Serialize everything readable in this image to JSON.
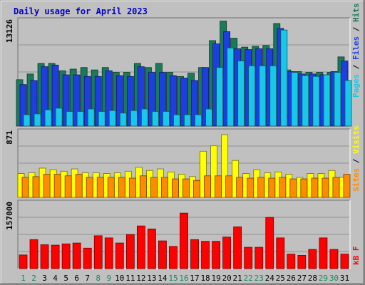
{
  "chart_data": [
    {
      "type": "bar",
      "title": "Daily usage for April 2023",
      "categories": [
        "1",
        "2",
        "3",
        "4",
        "5",
        "6",
        "7",
        "8",
        "9",
        "10",
        "11",
        "12",
        "13",
        "14",
        "15",
        "16",
        "17",
        "18",
        "19",
        "20",
        "21",
        "22",
        "23",
        "24",
        "25",
        "26",
        "27",
        "28",
        "29",
        "30",
        "31"
      ],
      "weekend_days": [
        "1",
        "2",
        "8",
        "9",
        "15",
        "16",
        "22",
        "23",
        "29",
        "30"
      ],
      "ylim": [
        0,
        13126
      ],
      "ytick_label": "13126",
      "series": [
        {
          "name": "Hits",
          "color": "#1a7a5a",
          "values": [
            5700,
            6400,
            7700,
            7700,
            6800,
            7000,
            7200,
            6900,
            7200,
            6600,
            6600,
            7700,
            7200,
            7700,
            6600,
            6100,
            6500,
            7200,
            10500,
            12900,
            10800,
            9700,
            9800,
            9900,
            12600,
            6900,
            6700,
            6600,
            6600,
            6600,
            8500
          ]
        },
        {
          "name": "Files",
          "color": "#1e3fe0",
          "values": [
            5100,
            5600,
            7300,
            7500,
            6300,
            6300,
            6100,
            6100,
            6800,
            6200,
            6100,
            7300,
            6600,
            6600,
            6200,
            5900,
            5600,
            7200,
            10100,
            11600,
            9500,
            9400,
            9500,
            9500,
            12000,
            6700,
            6400,
            6400,
            6300,
            6700,
            8000
          ]
        },
        {
          "name": "Pages",
          "color": "#18c8e8",
          "values": [
            1400,
            1500,
            2000,
            2200,
            1800,
            1800,
            2100,
            1800,
            1900,
            1600,
            1900,
            2100,
            1800,
            1800,
            1400,
            1400,
            1400,
            2100,
            7200,
            9600,
            8000,
            7400,
            7400,
            7400,
            11800,
            6600,
            6200,
            6100,
            6300,
            6600,
            5600
          ]
        }
      ]
    },
    {
      "type": "bar",
      "ylim": [
        0,
        871
      ],
      "ytick_label": "871",
      "series": [
        {
          "name": "Visits",
          "color": "#ffff00",
          "values": [
            310,
            320,
            380,
            360,
            340,
            370,
            320,
            320,
            310,
            320,
            340,
            390,
            350,
            370,
            330,
            300,
            270,
            600,
            670,
            816,
            480,
            310,
            360,
            320,
            330,
            300,
            260,
            310,
            310,
            350,
            260
          ]
        },
        {
          "name": "Sites",
          "color": "#ff8c00",
          "values": [
            260,
            270,
            300,
            300,
            280,
            300,
            260,
            260,
            260,
            260,
            250,
            280,
            260,
            260,
            240,
            240,
            220,
            280,
            280,
            280,
            260,
            250,
            260,
            250,
            260,
            240,
            240,
            250,
            250,
            260,
            300
          ]
        }
      ]
    },
    {
      "type": "bar",
      "ylim": [
        0,
        157000
      ],
      "ytick_label": "157000",
      "series": [
        {
          "name": "KBytes",
          "color": "#ff0000",
          "values": [
            32000,
            68000,
            56000,
            55000,
            58000,
            60000,
            48000,
            77000,
            72000,
            60000,
            80000,
            100000,
            93000,
            65000,
            52000,
            130000,
            68000,
            64000,
            64000,
            74000,
            98000,
            50000,
            50000,
            120000,
            72000,
            34000,
            31000,
            45000,
            72000,
            45000,
            34000
          ]
        }
      ]
    }
  ]
}
